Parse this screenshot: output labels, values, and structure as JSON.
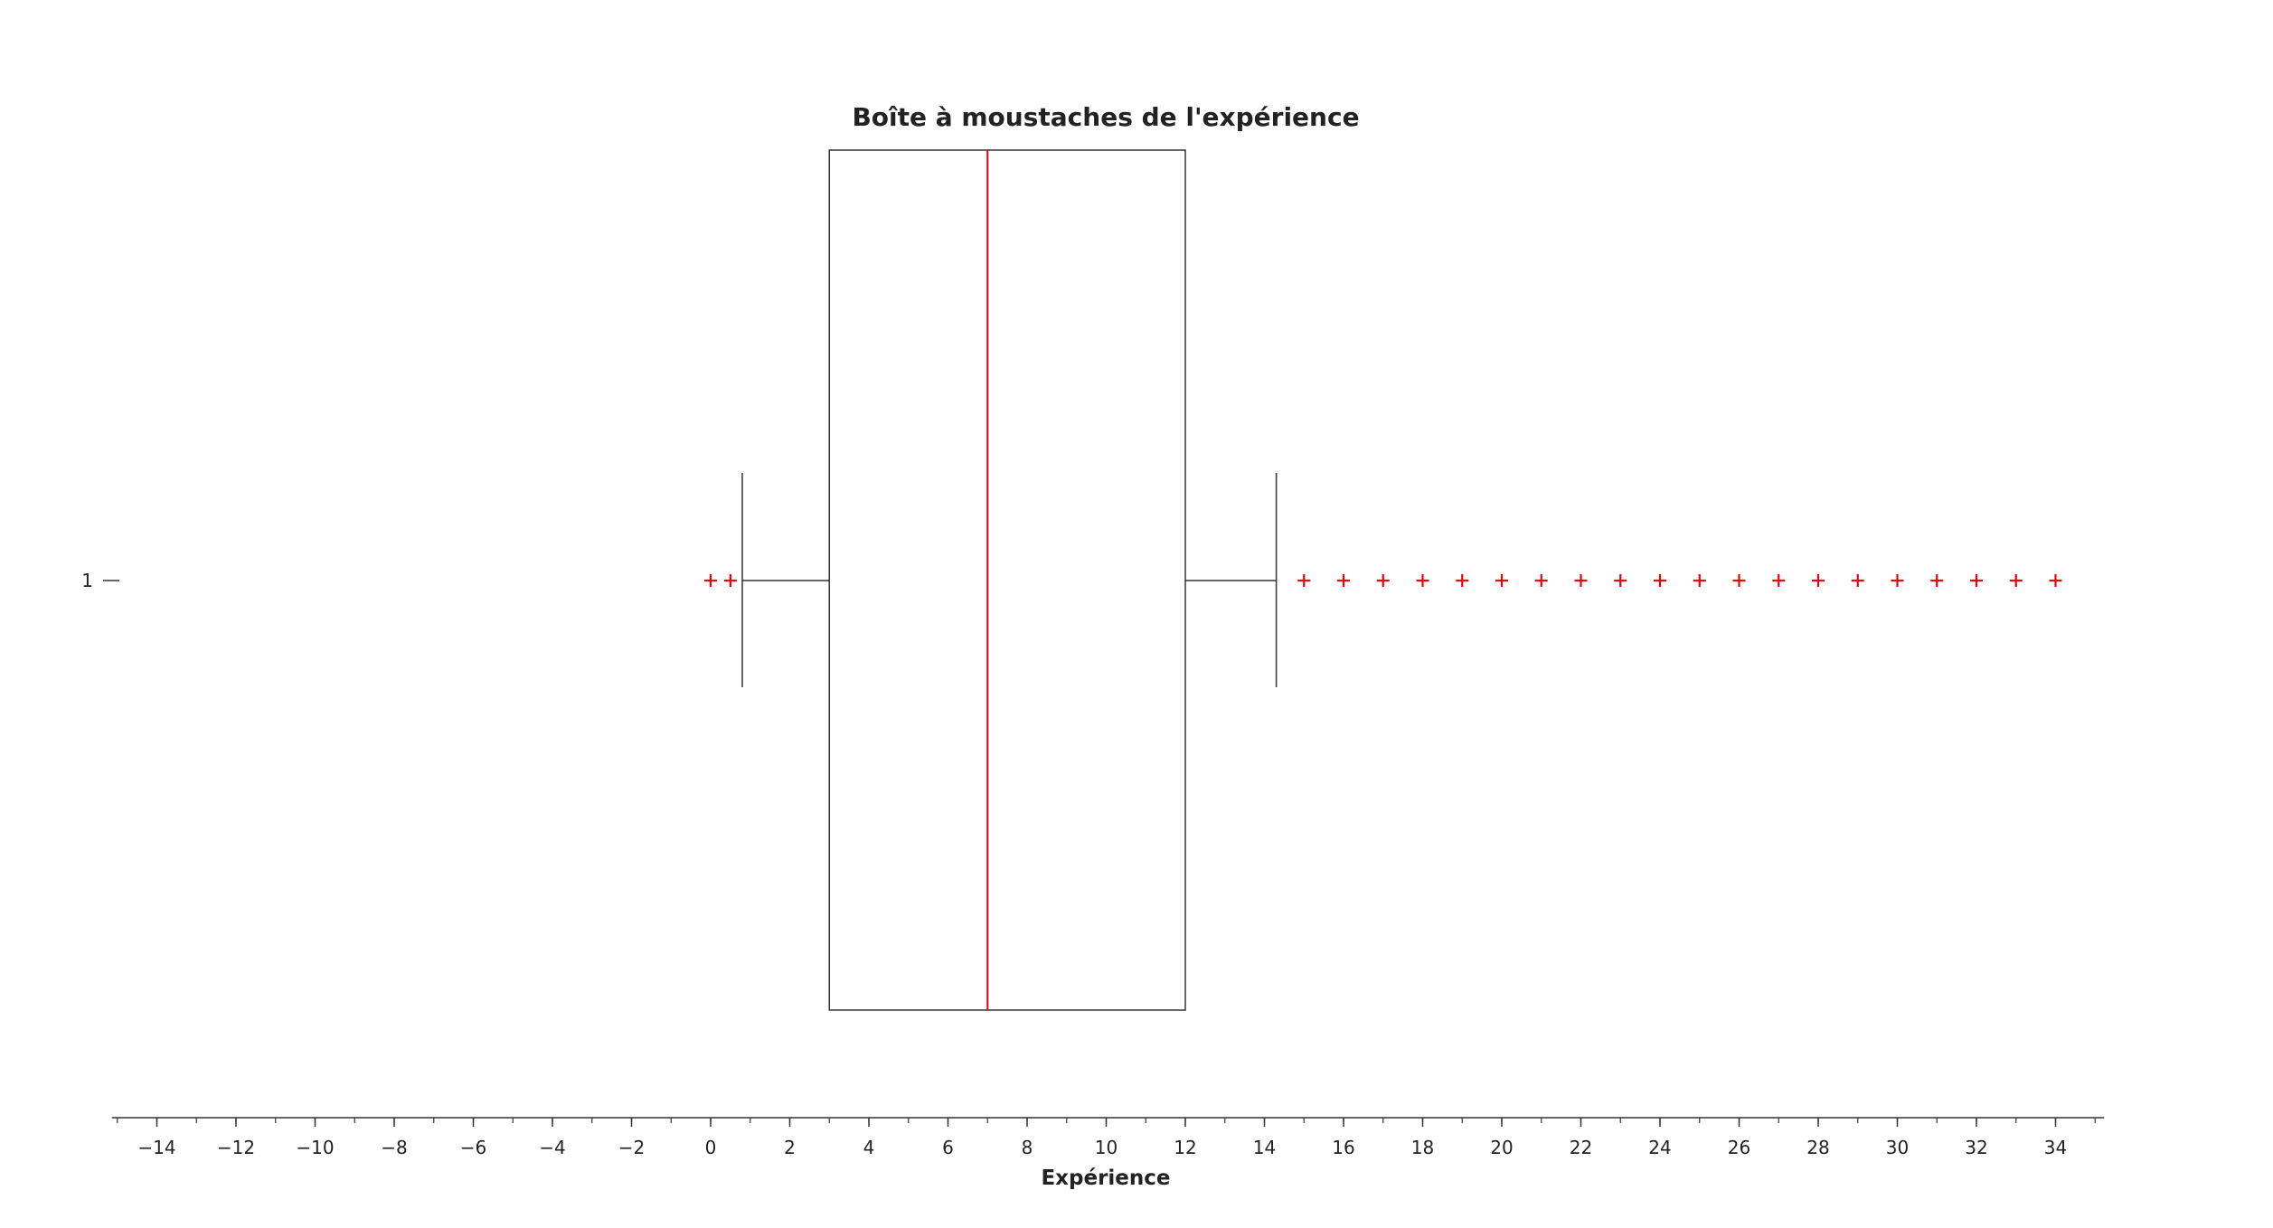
{
  "chart_data": {
    "type": "boxplot",
    "title": "Boîte à moustaches de l'expérience",
    "xlabel": "Expérience",
    "ylabel": "",
    "orientation": "horizontal",
    "xlim": [
      -15,
      35
    ],
    "x_ticks": [
      -14,
      -12,
      -10,
      -8,
      -6,
      -4,
      -2,
      0,
      2,
      4,
      6,
      8,
      10,
      12,
      14,
      16,
      18,
      20,
      22,
      24,
      26,
      28,
      30,
      32,
      34
    ],
    "x_tick_labels": [
      "−14",
      "−12",
      "−10",
      "−8",
      "−6",
      "−4",
      "−2",
      "0",
      "2",
      "4",
      "6",
      "8",
      "10",
      "12",
      "14",
      "16",
      "18",
      "20",
      "22",
      "24",
      "26",
      "28",
      "30",
      "32",
      "34"
    ],
    "y_tick_labels": [
      "1"
    ],
    "grid": false,
    "boxes": [
      {
        "label": "1",
        "q1": 3,
        "median": 7,
        "q3": 12,
        "whisker_low": 0.8,
        "whisker_high": 14.3,
        "outliers": [
          0,
          0.5,
          15,
          16,
          17,
          18,
          19,
          20,
          21,
          22,
          23,
          24,
          25,
          26,
          27,
          28,
          29,
          30,
          31,
          32,
          33,
          34
        ]
      }
    ],
    "colors": {
      "box": "#333333",
      "median": "#e8000b",
      "outlier": "#e8000b",
      "axis": "#333333",
      "text": "#222222"
    }
  }
}
